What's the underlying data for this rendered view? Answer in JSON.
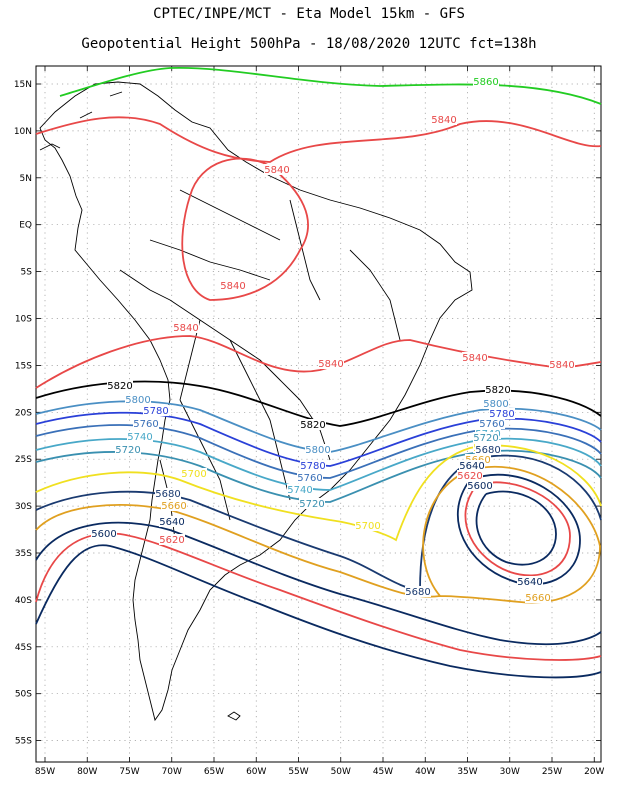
{
  "header": {
    "title_line1": "CPTEC/INPE/MCT  -   Eta Model 15km  - GFS",
    "title_line2": "Geopotential Height 500hPa - 18/08/2020 12UTC fct=138h"
  },
  "map": {
    "lat_labels": [
      "15N",
      "10N",
      "5N",
      "EQ",
      "5S",
      "10S",
      "15S",
      "20S",
      "25S",
      "30S",
      "35S",
      "40S",
      "45S",
      "50S",
      "55S"
    ],
    "lon_labels": [
      "85W",
      "80W",
      "75W",
      "70W",
      "65W",
      "60W",
      "55W",
      "50W",
      "45W",
      "40W",
      "35W",
      "30W",
      "25W",
      "20W"
    ]
  },
  "contours": [
    {
      "level": "5860",
      "color": "#22cc22"
    },
    {
      "level": "5840",
      "color": "#e84848"
    },
    {
      "level": "5820",
      "color": "#000000"
    },
    {
      "level": "5800",
      "color": "#4a8fc4"
    },
    {
      "level": "5780",
      "color": "#2a40d8"
    },
    {
      "level": "5760",
      "color": "#3a70b8"
    },
    {
      "level": "5740",
      "color": "#48a8c8"
    },
    {
      "level": "5720",
      "color": "#3a90b0"
    },
    {
      "level": "5700",
      "color": "#f0e020"
    },
    {
      "level": "5680",
      "color": "#1a3a70"
    },
    {
      "level": "5660",
      "color": "#e0a020"
    },
    {
      "level": "5640",
      "color": "#0a2a60"
    },
    {
      "level": "5620",
      "color": "#e84848"
    },
    {
      "level": "5600",
      "color": "#0a2a60"
    }
  ]
}
